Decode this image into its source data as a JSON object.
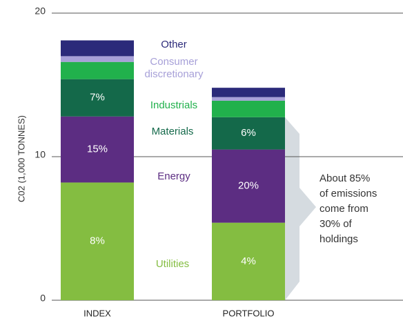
{
  "chart_data": {
    "type": "stacked-bar",
    "y_label": "C02 (1,000 TONNES)",
    "categories": [
      "INDEX",
      "PORTFOLIO"
    ],
    "ylim": [
      0,
      20
    ],
    "yticks": [
      0,
      10,
      20
    ],
    "grid": true,
    "series": [
      {
        "name": "Utilities",
        "color": "#84bd41",
        "values": [
          8.2,
          5.4
        ],
        "labels": [
          "8%",
          "4%"
        ]
      },
      {
        "name": "Energy",
        "color": "#5c2d82",
        "values": [
          4.6,
          5.1
        ],
        "labels": [
          "15%",
          "20%"
        ]
      },
      {
        "name": "Materials",
        "color": "#14694a",
        "values": [
          2.6,
          2.25
        ],
        "labels": [
          "7%",
          "6%"
        ]
      },
      {
        "name": "Industrials",
        "color": "#21b14c",
        "values": [
          1.2,
          1.15
        ]
      },
      {
        "name": "Consumer discretionary",
        "color": "#a7a0d8",
        "values": [
          0.4,
          0.25
        ]
      },
      {
        "name": "Other",
        "color": "#2b2a7a",
        "values": [
          1.1,
          0.65
        ]
      }
    ],
    "annotation": [
      "About 85%",
      "of emissions",
      "come from",
      "30% of",
      "holdings"
    ]
  }
}
